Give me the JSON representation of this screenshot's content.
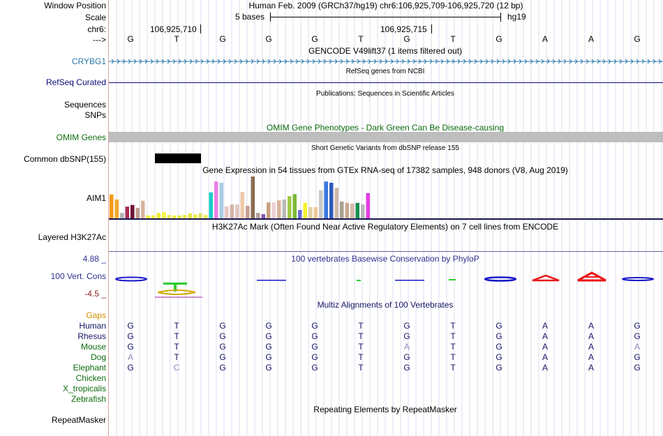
{
  "header": {
    "window_position_label": "Window Position",
    "window_position_value": "Human Feb. 2009 (GRCh37/hg19)   chr6:106,925,709-106,925,720 (12 bp)",
    "scale_label": "Scale",
    "scale_left": "5 bases",
    "scale_right": "hg19",
    "chr_label": "chr6:",
    "coord1": "106,925,710",
    "coord2": "106,925,715",
    "arrow_label": "--->",
    "bases": [
      "G",
      "T",
      "G",
      "G",
      "G",
      "T",
      "G",
      "T",
      "G",
      "A",
      "A",
      "G"
    ]
  },
  "tracks": {
    "gencode_title": "GENCODE V49lift37 (1 items filtered out)",
    "gencode_label": "CRYBG1",
    "refseq_title": "RefSeq genes from NCBI",
    "refseq_label": "RefSeq Curated",
    "pubs_title": "Publications: Sequences in Scientific Articles",
    "pubs_label": "Sequences",
    "snps_label": "SNPs",
    "omim_title": "OMIM Gene Phenotypes - Dark Green Can Be Disease-causing",
    "omim_label": "OMIM Genes",
    "dbsnp_title": "Short Genetic Variants from dbSNP release 155",
    "dbsnp_label": "Common dbSNP(155)",
    "gtex_title": "Gene Expression in 54 tissues from GTEx RNA-seq of 17382 samples, 948 donors (V8, Aug 2019)",
    "gtex_label": "AIM1",
    "h3k_title": "H3K27Ac Mark (Often Found Near Active Regulatory Elements) on 7 cell lines from ENCODE",
    "h3k_label": "Layered H3K27Ac",
    "phylop_title": "100 vertebrates Basewise Conservation by PhyloP",
    "phylop_max": "4.88 _",
    "phylop_label": "100 Vert. Cons",
    "phylop_min": "-4.5 _",
    "multiz_title": "Multiz Alignments of 100 Vertebrates",
    "gaps_label": "Gaps",
    "repeat_title": "Repeating Elements by RepeatMasker",
    "repeat_label": "RepeatMasker"
  },
  "gtex_bars": [
    {
      "color": "#f59b16",
      "value": 0.57
    },
    {
      "color": "#f6a829",
      "value": 0.45
    },
    {
      "color": "#b5b5b5",
      "value": 0.13
    },
    {
      "color": "#aa2c52",
      "value": 0.28
    },
    {
      "color": "#6c1438",
      "value": 0.32
    },
    {
      "color": "#c09c90",
      "value": 0.25
    },
    {
      "color": "#d8b49c",
      "value": 0.42
    },
    {
      "color": "#f2f23a",
      "value": 0.07
    },
    {
      "color": "#f2f23a",
      "value": 0.07
    },
    {
      "color": "#eeee38",
      "value": 0.13
    },
    {
      "color": "#f4f446",
      "value": 0.15
    },
    {
      "color": "#eaea55",
      "value": 0.08
    },
    {
      "color": "#f2f23c",
      "value": 0.07
    },
    {
      "color": "#e8e840",
      "value": 0.07
    },
    {
      "color": "#ecec4a",
      "value": 0.08
    },
    {
      "color": "#e4e44c",
      "value": 0.12
    },
    {
      "color": "#eeee42",
      "value": 0.09
    },
    {
      "color": "#e0e062",
      "value": 0.12
    },
    {
      "color": "#ebeb52",
      "value": 0.08
    },
    {
      "color": "#17cfc6",
      "value": 0.62
    },
    {
      "color": "#ea80e8",
      "value": 0.88
    },
    {
      "color": "#a8cce0",
      "value": 0.85
    },
    {
      "color": "#e6c7c0",
      "value": 0.28
    },
    {
      "color": "#d4b3a8",
      "value": 0.33
    },
    {
      "color": "#e3c8bd",
      "value": 0.33
    },
    {
      "color": "#eec8a8",
      "value": 0.63
    },
    {
      "color": "#c8a090",
      "value": 0.3
    },
    {
      "color": "#8a6e50",
      "value": 1.0
    },
    {
      "color": "#b0a0a0",
      "value": 0.13
    },
    {
      "color": "#8855aa",
      "value": 0.1
    },
    {
      "color": "#c9a080",
      "value": 0.38
    },
    {
      "color": "#ecd0d4",
      "value": 0.38
    },
    {
      "color": "#d8b49c",
      "value": 0.43
    },
    {
      "color": "#bbbbbb",
      "value": 0.45
    },
    {
      "color": "#a4c848",
      "value": 0.53
    },
    {
      "color": "#7cb838",
      "value": 0.58
    },
    {
      "color": "#6b6bd8",
      "value": 0.2
    },
    {
      "color": "#f4f42c",
      "value": 0.37
    },
    {
      "color": "#e0d0a0",
      "value": 0.27
    },
    {
      "color": "#f0c898",
      "value": 0.27
    },
    {
      "color": "#c8c8c8",
      "value": 0.67
    },
    {
      "color": "#3a78e0",
      "value": 0.88
    },
    {
      "color": "#2c5ab8",
      "value": 0.85
    },
    {
      "color": "#cdb8a8",
      "value": 0.73
    },
    {
      "color": "#a9a090",
      "value": 0.4
    },
    {
      "color": "#c8a890",
      "value": 0.37
    },
    {
      "color": "#d8b8a8",
      "value": 0.35
    },
    {
      "color": "#1a9050",
      "value": 0.37
    },
    {
      "color": "#b8b8b8",
      "value": 0.33
    },
    {
      "color": "#e43ce4",
      "value": 0.6
    }
  ],
  "species": [
    {
      "name": "Human",
      "color": "#141464",
      "bases": [
        "G",
        "T",
        "G",
        "G",
        "G",
        "T",
        "G",
        "T",
        "G",
        "A",
        "A",
        "G"
      ],
      "light": []
    },
    {
      "name": "Rhesus",
      "color": "#141464",
      "bases": [
        "G",
        "T",
        "G",
        "G",
        "G",
        "T",
        "G",
        "T",
        "G",
        "A",
        "A",
        "G"
      ],
      "light": []
    },
    {
      "name": "Mouse",
      "color": "#0c6c0c",
      "bases": [
        "G",
        "T",
        "G",
        "G",
        "G",
        "T",
        "A",
        "T",
        "G",
        "A",
        "A",
        "A"
      ],
      "light": [
        6,
        11
      ]
    },
    {
      "name": "Dog",
      "color": "#0c6c0c",
      "bases": [
        "A",
        "T",
        "G",
        "G",
        "G",
        "T",
        "G",
        "T",
        "G",
        "A",
        "A",
        "G"
      ],
      "light": [
        0
      ]
    },
    {
      "name": "Elephant",
      "color": "#0c6c0c",
      "bases": [
        "G",
        "C",
        "G",
        "G",
        "G",
        "T",
        "G",
        "T",
        "G",
        "A",
        "A",
        "G"
      ],
      "light": [
        1
      ]
    },
    {
      "name": "Chicken",
      "color": "#0c6c0c",
      "bases": [],
      "light": []
    },
    {
      "name": "X_tropicalis",
      "color": "#0c6c0c",
      "bases": [],
      "light": []
    },
    {
      "name": "Zebrafish",
      "color": "#0c6c0c",
      "bases": [],
      "light": []
    }
  ],
  "colors": {
    "gencode_blue": "#2878a8",
    "refseq_navy": "#0c0c78",
    "omim_green": "#0c6c0c",
    "phylop_blue": "#1818c8",
    "phylop_red": "#e81818",
    "gaps_orange": "#d28c00",
    "dbsnp_black": "#000000"
  }
}
